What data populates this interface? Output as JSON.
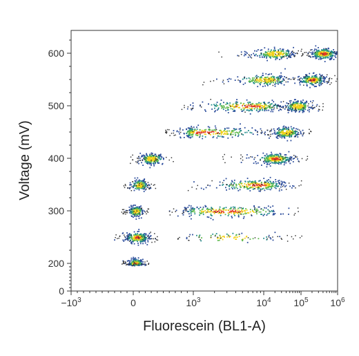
{
  "chart_data": {
    "type": "scatter",
    "style": "density-colored flow cytometry scatter (blue-green-yellow-red by density)",
    "xlabel": "Fluorescein (BL1-A)",
    "ylabel": "Voltage (mV)",
    "x_scale": "biexponential (linear near 0, log above 10^3)",
    "x_ticks": [
      {
        "value": -1000,
        "base": "−10",
        "exp": "3"
      },
      {
        "value": 0,
        "base": "0",
        "exp": ""
      },
      {
        "value": 1000,
        "base": "10",
        "exp": "3"
      },
      {
        "value": 10000,
        "base": "10",
        "exp": "4"
      },
      {
        "value": 100000,
        "base": "10",
        "exp": "5"
      },
      {
        "value": 1000000,
        "base": "10",
        "exp": "6"
      }
    ],
    "y_ticks": [
      0,
      200,
      300,
      400,
      500,
      600
    ],
    "ylim": [
      0,
      650
    ],
    "grid": false,
    "legend": "none",
    "populations": [
      {
        "y": 200,
        "clusters": [
          {
            "x": 30,
            "spread": 0.35,
            "weight": 1.0
          }
        ]
      },
      {
        "y": 250,
        "clusters": [
          {
            "x": 60,
            "spread": 0.55,
            "weight": 1.0
          },
          {
            "x": 3000,
            "spread": 0.8,
            "weight": 0.25
          }
        ]
      },
      {
        "y": 300,
        "clusters": [
          {
            "x": 40,
            "spread": 0.35,
            "weight": 0.6
          },
          {
            "x": 3000,
            "spread": 0.9,
            "weight": 1.0
          }
        ]
      },
      {
        "y": 350,
        "clusters": [
          {
            "x": 100,
            "spread": 0.4,
            "weight": 0.6
          },
          {
            "x": 8000,
            "spread": 0.6,
            "weight": 1.0
          }
        ]
      },
      {
        "y": 400,
        "clusters": [
          {
            "x": 300,
            "spread": 0.55,
            "weight": 0.8
          },
          {
            "x": 20000,
            "spread": 0.45,
            "weight": 1.0
          }
        ]
      },
      {
        "y": 450,
        "clusters": [
          {
            "x": 1500,
            "spread": 0.8,
            "weight": 1.0
          },
          {
            "x": 40000,
            "spread": 0.35,
            "weight": 0.8
          }
        ]
      },
      {
        "y": 500,
        "clusters": [
          {
            "x": 6000,
            "spread": 0.7,
            "weight": 1.0
          },
          {
            "x": 80000,
            "spread": 0.35,
            "weight": 0.8
          }
        ]
      },
      {
        "y": 550,
        "clusters": [
          {
            "x": 12000,
            "spread": 0.5,
            "weight": 0.8
          },
          {
            "x": 200000,
            "spread": 0.35,
            "weight": 0.9
          }
        ]
      },
      {
        "y": 600,
        "clusters": [
          {
            "x": 20000,
            "spread": 0.5,
            "weight": 0.8
          },
          {
            "x": 400000,
            "spread": 0.35,
            "weight": 1.0
          }
        ]
      }
    ],
    "density_colors": [
      "#2a4b9b",
      "#1f8a8a",
      "#5cb84a",
      "#f2d21b",
      "#e23a23"
    ]
  }
}
